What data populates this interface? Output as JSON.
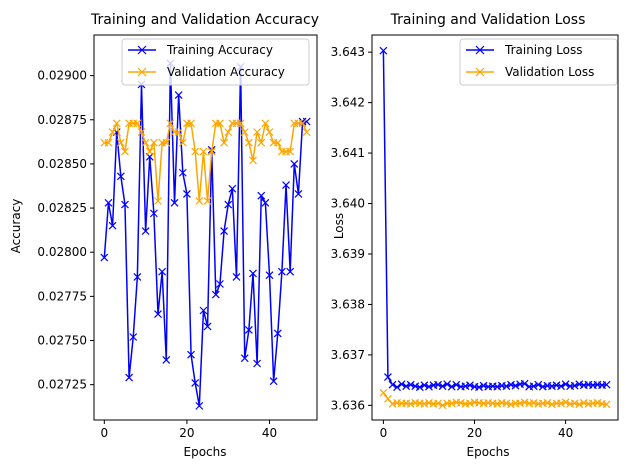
{
  "chart_data": [
    {
      "type": "line",
      "title": "Training and Validation Accuracy",
      "xlabel": "Epochs",
      "ylabel": "Accuracy",
      "xlim": [
        -2.5,
        51.5
      ],
      "ylim": [
        0.02705,
        0.02923
      ],
      "x_ticks": [
        0,
        20,
        40
      ],
      "y_ticks": [
        0.02725,
        0.0275,
        0.02775,
        0.028,
        0.02825,
        0.0285,
        0.02875,
        0.029
      ],
      "y_tick_labels": [
        "0.02725",
        "0.02750",
        "0.02775",
        "0.02800",
        "0.02825",
        "0.02850",
        "0.02875",
        "0.02900"
      ],
      "legend_position": "upper right",
      "grid": false,
      "x": [
        0,
        1,
        2,
        3,
        4,
        5,
        6,
        7,
        8,
        9,
        10,
        11,
        12,
        13,
        14,
        15,
        16,
        17,
        18,
        19,
        20,
        21,
        22,
        23,
        24,
        25,
        26,
        27,
        28,
        29,
        30,
        31,
        32,
        33,
        34,
        35,
        36,
        37,
        38,
        39,
        40,
        41,
        42,
        43,
        44,
        45,
        46,
        47,
        48,
        49
      ],
      "series": [
        {
          "name": "Training Accuracy",
          "color": "#0000ff",
          "marker": "x",
          "values": [
            0.02797,
            0.02828,
            0.02815,
            0.02868,
            0.02843,
            0.02827,
            0.02729,
            0.02752,
            0.02786,
            0.02895,
            0.02812,
            0.02854,
            0.02822,
            0.02765,
            0.02789,
            0.02739,
            0.02907,
            0.02828,
            0.02889,
            0.02845,
            0.02833,
            0.02742,
            0.02726,
            0.02713,
            0.02767,
            0.02758,
            0.02858,
            0.02776,
            0.02782,
            0.02812,
            0.02827,
            0.02836,
            0.02786,
            0.02905,
            0.0274,
            0.02756,
            0.02788,
            0.02737,
            0.02832,
            0.02828,
            0.02787,
            0.02727,
            0.02754,
            0.02789,
            0.02838,
            0.02789,
            0.0285,
            0.02833,
            0.02874,
            0.02874
          ]
        },
        {
          "name": "Validation Accuracy",
          "color": "#ffa500",
          "marker": "x",
          "values": [
            0.02862,
            0.02862,
            0.02868,
            0.02873,
            0.02862,
            0.02857,
            0.02873,
            0.02873,
            0.02873,
            0.02868,
            0.02862,
            0.02857,
            0.02862,
            0.02829,
            0.02862,
            0.02862,
            0.02873,
            0.02868,
            0.02868,
            0.02862,
            0.02873,
            0.02873,
            0.02857,
            0.02829,
            0.02857,
            0.02829,
            0.02857,
            0.02873,
            0.02873,
            0.02862,
            0.02868,
            0.02873,
            0.02873,
            0.02873,
            0.02868,
            0.02862,
            0.02852,
            0.02868,
            0.02862,
            0.02873,
            0.02868,
            0.02862,
            0.02862,
            0.02857,
            0.02857,
            0.02857,
            0.02873,
            0.02873,
            0.02873,
            0.02868
          ]
        }
      ]
    },
    {
      "type": "line",
      "title": "Training and Validation Loss",
      "xlabel": "Epochs",
      "ylabel": "Loss",
      "xlim": [
        -2.5,
        51.5
      ],
      "ylim": [
        3.63571,
        3.64334
      ],
      "x_ticks": [
        0,
        20,
        40
      ],
      "y_ticks": [
        3.636,
        3.637,
        3.638,
        3.639,
        3.64,
        3.641,
        3.642,
        3.643
      ],
      "y_tick_labels": [
        "3.636",
        "3.637",
        "3.638",
        "3.639",
        "3.640",
        "3.641",
        "3.642",
        "3.643"
      ],
      "legend_position": "upper right",
      "grid": false,
      "x": [
        0,
        1,
        2,
        3,
        4,
        5,
        6,
        7,
        8,
        9,
        10,
        11,
        12,
        13,
        14,
        15,
        16,
        17,
        18,
        19,
        20,
        21,
        22,
        23,
        24,
        25,
        26,
        27,
        28,
        29,
        30,
        31,
        32,
        33,
        34,
        35,
        36,
        37,
        38,
        39,
        40,
        41,
        42,
        43,
        44,
        45,
        46,
        47,
        48,
        49
      ],
      "series": [
        {
          "name": "Training Loss",
          "color": "#0000ff",
          "marker": "x",
          "values": [
            3.64303,
            3.63656,
            3.63641,
            3.63636,
            3.63642,
            3.63638,
            3.63641,
            3.63638,
            3.63636,
            3.6364,
            3.63637,
            3.6364,
            3.63641,
            3.63638,
            3.63642,
            3.63637,
            3.63641,
            3.63637,
            3.63638,
            3.6364,
            3.63637,
            3.63636,
            3.63639,
            3.63637,
            3.63638,
            3.63637,
            3.63639,
            3.63638,
            3.63641,
            3.63639,
            3.63642,
            3.63643,
            3.63637,
            3.63638,
            3.63641,
            3.63637,
            3.63639,
            3.63638,
            3.6364,
            3.63638,
            3.63642,
            3.63638,
            3.63639,
            3.63642,
            3.6364,
            3.63641,
            3.6364,
            3.63641,
            3.6364,
            3.63641
          ]
        },
        {
          "name": "Validation Loss",
          "color": "#ffa500",
          "marker": "x",
          "values": [
            3.63625,
            3.63613,
            3.63603,
            3.63605,
            3.63604,
            3.63604,
            3.63603,
            3.63605,
            3.63604,
            3.63603,
            3.63605,
            3.63603,
            3.63604,
            3.636,
            3.63604,
            3.63604,
            3.63606,
            3.63605,
            3.63603,
            3.63604,
            3.63606,
            3.63605,
            3.63604,
            3.63605,
            3.63604,
            3.63603,
            3.63605,
            3.63604,
            3.63602,
            3.63604,
            3.63604,
            3.63606,
            3.63604,
            3.63605,
            3.63603,
            3.63604,
            3.63605,
            3.63602,
            3.63604,
            3.63604,
            3.63606,
            3.63603,
            3.63604,
            3.63602,
            3.63605,
            3.63603,
            3.63604,
            3.63605,
            3.63603,
            3.63602
          ]
        }
      ]
    }
  ]
}
